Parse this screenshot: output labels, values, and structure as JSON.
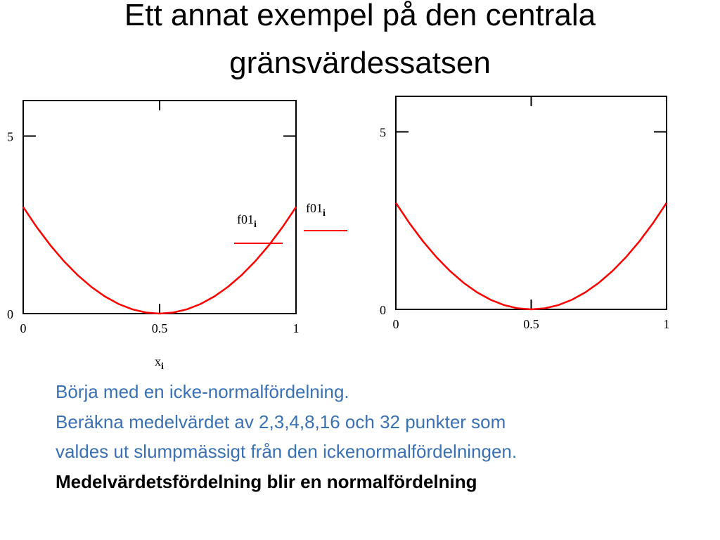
{
  "slide": {
    "title": [
      "Ett annat exempel på den centrala",
      "gränsvärdessatsen"
    ],
    "lines": [
      "Börja med en icke-normalfördelning.",
      "Beräkna medelvärdet av 2,3,4,8,16 och 32 punkter som",
      "valdes ut slumpmässigt från den ickenormalfördelningen."
    ],
    "conclusion": "Medelvärdetsfördelning blir en normalfördelning"
  },
  "chart_data": [
    {
      "type": "line",
      "x_label": "x",
      "x_label_subscript": "i",
      "x": [
        0,
        0.05,
        0.1,
        0.15,
        0.2,
        0.25,
        0.3,
        0.35,
        0.4,
        0.45,
        0.5,
        0.55,
        0.6,
        0.65,
        0.7,
        0.75,
        0.8,
        0.85,
        0.9,
        0.95,
        1
      ],
      "series": [
        {
          "name": "f01",
          "subscript": "i",
          "color": "#ff0000",
          "values": [
            3,
            2.43,
            1.92,
            1.47,
            1.08,
            0.75,
            0.48,
            0.27,
            0.12,
            0.03,
            0,
            0.03,
            0.12,
            0.27,
            0.48,
            0.75,
            1.08,
            1.47,
            1.92,
            2.43,
            3
          ]
        }
      ],
      "xlim": [
        0,
        1
      ],
      "ylim": [
        0,
        6
      ],
      "xticks": [
        0,
        0.5,
        1
      ],
      "yticks": [
        0,
        5
      ]
    },
    {
      "type": "line",
      "x": [
        0,
        0.05,
        0.1,
        0.15,
        0.2,
        0.25,
        0.3,
        0.35,
        0.4,
        0.45,
        0.5,
        0.55,
        0.6,
        0.65,
        0.7,
        0.75,
        0.8,
        0.85,
        0.9,
        0.95,
        1
      ],
      "series": [
        {
          "name": "f01",
          "subscript": "i",
          "color": "#ff0000",
          "values": [
            3,
            2.43,
            1.92,
            1.47,
            1.08,
            0.75,
            0.48,
            0.27,
            0.12,
            0.03,
            0,
            0.03,
            0.12,
            0.27,
            0.48,
            0.75,
            1.08,
            1.47,
            1.92,
            2.43,
            3
          ]
        }
      ],
      "xlim": [
        0,
        1
      ],
      "ylim": [
        0,
        6
      ],
      "xticks": [
        0,
        0.5,
        1
      ],
      "yticks": [
        0,
        5
      ]
    }
  ]
}
